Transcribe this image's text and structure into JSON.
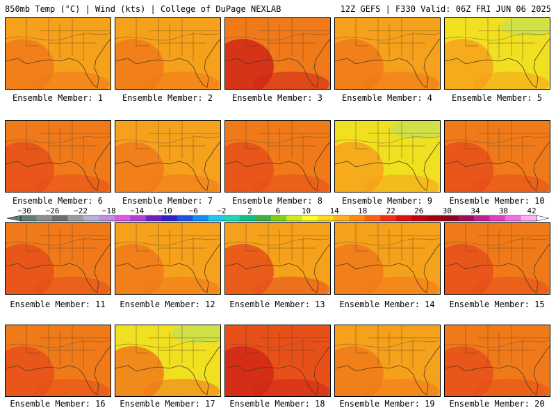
{
  "header": {
    "left": "850mb Temp (°C) | Wind (kts) | College of DuPage NEXLAB",
    "right": "12Z GEFS | F330 Valid: 06Z FRI JUN 06 2025"
  },
  "members": [
    {
      "label": "Ensemble Member: 1"
    },
    {
      "label": "Ensemble Member: 2"
    },
    {
      "label": "Ensemble Member: 3"
    },
    {
      "label": "Ensemble Member: 4"
    },
    {
      "label": "Ensemble Member: 5"
    },
    {
      "label": "Ensemble Member: 6"
    },
    {
      "label": "Ensemble Member: 7"
    },
    {
      "label": "Ensemble Member: 8"
    },
    {
      "label": "Ensemble Member: 9"
    },
    {
      "label": "Ensemble Member: 10"
    },
    {
      "label": "Ensemble Member: 11"
    },
    {
      "label": "Ensemble Member: 12"
    },
    {
      "label": "Ensemble Member: 13"
    },
    {
      "label": "Ensemble Member: 14"
    },
    {
      "label": "Ensemble Member: 15"
    },
    {
      "label": "Ensemble Member: 16"
    },
    {
      "label": "Ensemble Member: 17"
    },
    {
      "label": "Ensemble Member: 18"
    },
    {
      "label": "Ensemble Member: 19"
    },
    {
      "label": "Ensemble Member: 20"
    }
  ],
  "colorbar": {
    "labels": [
      "−30",
      "−26",
      "−22",
      "−18",
      "−14",
      "−10",
      "−6",
      "−2",
      "2",
      "6",
      "10",
      "14",
      "18",
      "22",
      "26",
      "30",
      "34",
      "38",
      "42"
    ],
    "colors": [
      "#5f7f6f",
      "#8c8c8c",
      "#6e6e6e",
      "#9c9c9c",
      "#b4b4d8",
      "#c08ee0",
      "#e056e0",
      "#b040d8",
      "#7020c0",
      "#3020c8",
      "#2050e0",
      "#1090f0",
      "#20c8f0",
      "#20d8b0",
      "#10c080",
      "#40b040",
      "#80d020",
      "#d0e820",
      "#ffff20",
      "#ffd820",
      "#ffb020",
      "#ff8c10",
      "#ff6010",
      "#f03010",
      "#e01010",
      "#c00010",
      "#a00010",
      "#900020",
      "#a01050",
      "#c02090",
      "#e040c0",
      "#f070e0",
      "#ffb0f0"
    ]
  },
  "colors": {
    "cool": "#c8e050",
    "mild": "#f0e020",
    "warm": "#f6a11b",
    "hot": "#f07a1a",
    "very_hot": "#e8501a",
    "extreme": "#d02818"
  }
}
